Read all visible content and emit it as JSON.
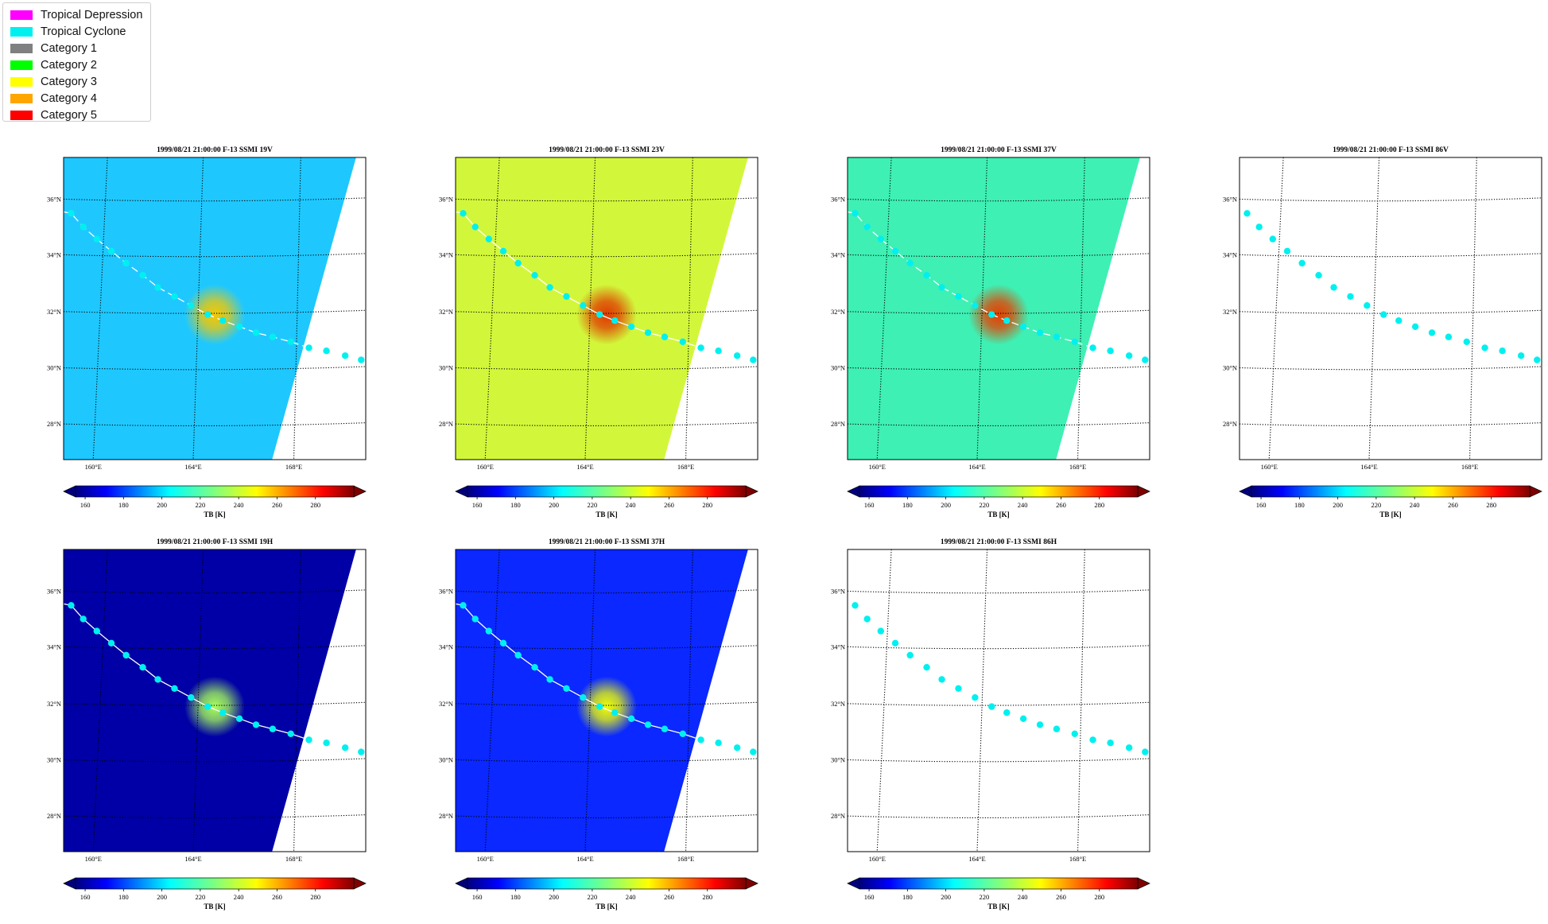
{
  "legend": {
    "items": [
      {
        "label": "Tropical Depression",
        "color": "#ff00ff"
      },
      {
        "label": "Tropical Cyclone",
        "color": "#00f0f0"
      },
      {
        "label": "Category 1",
        "color": "#808080"
      },
      {
        "label": "Category 2",
        "color": "#00ff00"
      },
      {
        "label": "Category 3",
        "color": "#ffff00"
      },
      {
        "label": "Category 4",
        "color": "#ffa500"
      },
      {
        "label": "Category 5",
        "color": "#ff0000"
      }
    ]
  },
  "colorbar": {
    "label": "TB [K]",
    "ticks": [
      "160",
      "180",
      "200",
      "220",
      "240",
      "260",
      "280"
    ],
    "range": [
      155,
      300
    ],
    "colormap": "jet"
  },
  "map": {
    "lat_labels": [
      "36°N",
      "34°N",
      "32°N",
      "30°N",
      "28°N"
    ],
    "lon_labels": [
      "160°E",
      "164°E",
      "168°E"
    ],
    "track_color": "#00f0f0"
  },
  "panels": [
    {
      "title": "1999/08/21 21:00:00  F-13 SSMI 19V",
      "background": "#1ec8ff",
      "center": "#f5c800",
      "swath": true,
      "track_line": "dashed"
    },
    {
      "title": "1999/08/21 21:00:00  F-13 SSMI 23V",
      "background": "#d2f73a",
      "center": "#e03c00",
      "swath": true,
      "track_line": "solid"
    },
    {
      "title": "1999/08/21 21:00:00  F-13 SSMI 37V",
      "background": "#3ef0b4",
      "center": "#e64000",
      "swath": true,
      "track_line": "dashed"
    },
    {
      "title": "1999/08/21 21:00:00  F-13 SSMI 86V",
      "background": "#ffffff",
      "center": "",
      "swath": false,
      "track_line": "none"
    },
    {
      "title": "1999/08/21 21:00:00  F-13 SSMI 19H",
      "background": "#0000a6",
      "center": "#a8ff5a",
      "swath": true,
      "track_line": "solid"
    },
    {
      "title": "1999/08/21 21:00:00  F-13 SSMI 37H",
      "background": "#0a28ff",
      "center": "#f0ff00",
      "swath": true,
      "track_line": "solid"
    },
    {
      "title": "1999/08/21 21:00:00  F-13 SSMI 86H",
      "background": "#ffffff",
      "center": "",
      "swath": false,
      "track_line": "none"
    }
  ]
}
